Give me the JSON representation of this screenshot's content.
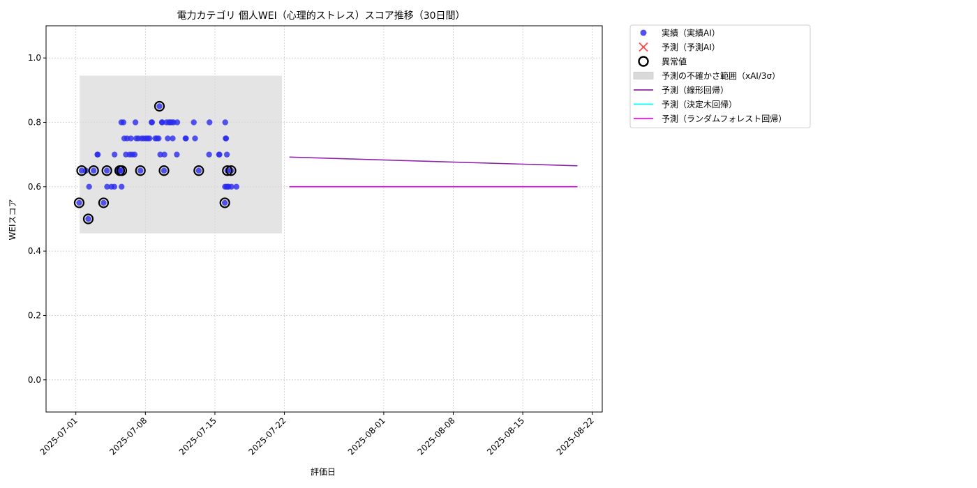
{
  "chart_data": {
    "type": "scatter",
    "title": "電力カテゴリ 個人WEI（心理的ストレス）スコア推移（30日間）",
    "xlabel": "評価日",
    "ylabel": "WEIスコア",
    "xlim": [
      "2025-06-28",
      "2025-08-23"
    ],
    "ylim": [
      -0.1,
      1.1
    ],
    "grid": true,
    "legend_position": "outside-top-right",
    "x_ticks": [
      "2025-07-01",
      "2025-07-08",
      "2025-07-15",
      "2025-07-22",
      "2025-08-01",
      "2025-08-08",
      "2025-08-15",
      "2025-08-22"
    ],
    "y_ticks": [
      "0.0",
      "0.2",
      "0.4",
      "0.6",
      "0.8",
      "1.0"
    ],
    "legend": [
      {
        "label": "実績（実績AI）",
        "marker": "dot",
        "color": "#3333ee"
      },
      {
        "label": "予測（予測AI）",
        "marker": "x",
        "color": "#ff4444"
      },
      {
        "label": "異常値",
        "marker": "ring",
        "color": "#000000"
      },
      {
        "label": "予測の不確かさ範囲（xAI/3σ）",
        "marker": "band",
        "color": "#d9d9d9"
      },
      {
        "label": "予測（線形回帰）",
        "marker": "line",
        "color": "#8e24aa"
      },
      {
        "label": "予測（決定木回帰）",
        "marker": "line",
        "color": "#00ffff"
      },
      {
        "label": "予測（ランダムフォレスト回帰）",
        "marker": "line",
        "color": "#ff00ff"
      }
    ],
    "uncertainty_band": {
      "x": [
        "2025-07-01T09:00",
        "2025-07-21T18:00"
      ],
      "y": [
        0.455,
        0.945
      ]
    },
    "actual": [
      [
        "2025-07-01T08:00",
        0.55
      ],
      [
        "2025-07-01T14:00",
        0.65
      ],
      [
        "2025-07-02T00:00",
        0.65
      ],
      [
        "2025-07-02T06:00",
        0.5
      ],
      [
        "2025-07-02T08:00",
        0.6
      ],
      [
        "2025-07-02T19:00",
        0.65
      ],
      [
        "2025-07-03T04:00",
        0.7
      ],
      [
        "2025-07-03T05:00",
        0.7
      ],
      [
        "2025-07-03T19:00",
        0.55
      ],
      [
        "2025-07-04T03:00",
        0.65
      ],
      [
        "2025-07-04T03:30",
        0.6
      ],
      [
        "2025-07-04T14:00",
        0.6
      ],
      [
        "2025-07-04T21:00",
        0.6
      ],
      [
        "2025-07-04T21:30",
        0.7
      ],
      [
        "2025-07-05T07:00",
        0.65
      ],
      [
        "2025-07-05T10:00",
        0.65
      ],
      [
        "2025-07-05T14:00",
        0.8
      ],
      [
        "2025-07-05T14:30",
        0.6
      ],
      [
        "2025-07-05T15:00",
        0.65
      ],
      [
        "2025-07-05T19:00",
        0.8
      ],
      [
        "2025-07-05T21:00",
        0.75
      ],
      [
        "2025-07-06T01:00",
        0.7
      ],
      [
        "2025-07-06T04:00",
        0.75
      ],
      [
        "2025-07-06T10:00",
        0.7
      ],
      [
        "2025-07-06T13:00",
        0.75
      ],
      [
        "2025-07-06T16:00",
        0.7
      ],
      [
        "2025-07-06T22:00",
        0.7
      ],
      [
        "2025-07-07T00:00",
        0.8
      ],
      [
        "2025-07-07T02:00",
        0.75
      ],
      [
        "2025-07-07T07:00",
        0.75
      ],
      [
        "2025-07-07T12:00",
        0.65
      ],
      [
        "2025-07-07T15:00",
        0.75
      ],
      [
        "2025-07-07T20:00",
        0.75
      ],
      [
        "2025-07-08T02:00",
        0.75
      ],
      [
        "2025-07-08T06:00",
        0.75
      ],
      [
        "2025-07-08T10:00",
        0.75
      ],
      [
        "2025-07-08T15:00",
        0.8
      ],
      [
        "2025-07-08T16:00",
        0.8
      ],
      [
        "2025-07-09T00:00",
        0.75
      ],
      [
        "2025-07-09T04:00",
        0.75
      ],
      [
        "2025-07-09T08:00",
        0.75
      ],
      [
        "2025-07-09T10:00",
        0.85
      ],
      [
        "2025-07-09T12:00",
        0.7
      ],
      [
        "2025-07-09T16:00",
        0.8
      ],
      [
        "2025-07-09T16:30",
        0.8
      ],
      [
        "2025-07-09T21:00",
        0.65
      ],
      [
        "2025-07-09T22:00",
        0.7
      ],
      [
        "2025-07-10T03:00",
        0.8
      ],
      [
        "2025-07-10T06:00",
        0.75
      ],
      [
        "2025-07-10T09:00",
        0.8
      ],
      [
        "2025-07-10T12:00",
        0.8
      ],
      [
        "2025-07-10T16:00",
        0.8
      ],
      [
        "2025-07-10T18:00",
        0.75
      ],
      [
        "2025-07-10T20:00",
        0.8
      ],
      [
        "2025-07-11T04:00",
        0.7
      ],
      [
        "2025-07-11T05:00",
        0.8
      ],
      [
        "2025-07-12T01:00",
        0.75
      ],
      [
        "2025-07-12T02:00",
        0.75
      ],
      [
        "2025-07-12T21:00",
        0.8
      ],
      [
        "2025-07-13T00:00",
        0.75
      ],
      [
        "2025-07-13T09:00",
        0.65
      ],
      [
        "2025-07-14T10:00",
        0.7
      ],
      [
        "2025-07-14T11:00",
        0.8
      ],
      [
        "2025-07-15T10:00",
        0.7
      ],
      [
        "2025-07-15T11:00",
        0.7
      ],
      [
        "2025-07-16T00:00",
        0.55
      ],
      [
        "2025-07-16T00:30",
        0.6
      ],
      [
        "2025-07-16T01:00",
        0.8
      ],
      [
        "2025-07-16T02:00",
        0.75
      ],
      [
        "2025-07-16T03:00",
        0.75
      ],
      [
        "2025-07-16T04:00",
        0.6
      ],
      [
        "2025-07-16T05:00",
        0.7
      ],
      [
        "2025-07-16T06:00",
        0.65
      ],
      [
        "2025-07-16T07:00",
        0.6
      ],
      [
        "2025-07-16T09:00",
        0.6
      ],
      [
        "2025-07-16T15:00",
        0.65
      ],
      [
        "2025-07-16T16:00",
        0.6
      ],
      [
        "2025-07-17T04:00",
        0.6
      ]
    ],
    "anomalies": [
      [
        "2025-07-01T08:00",
        0.55
      ],
      [
        "2025-07-01T14:00",
        0.65
      ],
      [
        "2025-07-02T06:00",
        0.5
      ],
      [
        "2025-07-02T19:00",
        0.65
      ],
      [
        "2025-07-03T19:00",
        0.55
      ],
      [
        "2025-07-04T03:00",
        0.65
      ],
      [
        "2025-07-05T10:00",
        0.65
      ],
      [
        "2025-07-05T15:00",
        0.65
      ],
      [
        "2025-07-07T12:00",
        0.65
      ],
      [
        "2025-07-09T10:00",
        0.85
      ],
      [
        "2025-07-09T21:00",
        0.65
      ],
      [
        "2025-07-13T09:00",
        0.65
      ],
      [
        "2025-07-16T00:00",
        0.55
      ],
      [
        "2025-07-16T06:00",
        0.65
      ],
      [
        "2025-07-16T15:00",
        0.65
      ]
    ],
    "series": [
      {
        "name": "予測（線形回帰）",
        "color": "#8e24aa",
        "x": [
          "2025-07-22T12:00",
          "2025-08-20T12:00"
        ],
        "values": [
          0.692,
          0.665
        ]
      },
      {
        "name": "予測（決定木回帰）",
        "color": "#00ffff",
        "x": [
          "2025-07-22T12:00",
          "2025-08-20T12:00"
        ],
        "values": [
          0.6,
          0.6
        ]
      },
      {
        "name": "予測（ランダムフォレスト回帰）",
        "color": "#ff00ff",
        "x": [
          "2025-07-22T12:00",
          "2025-08-20T12:00"
        ],
        "values": [
          0.6,
          0.6
        ]
      }
    ]
  }
}
